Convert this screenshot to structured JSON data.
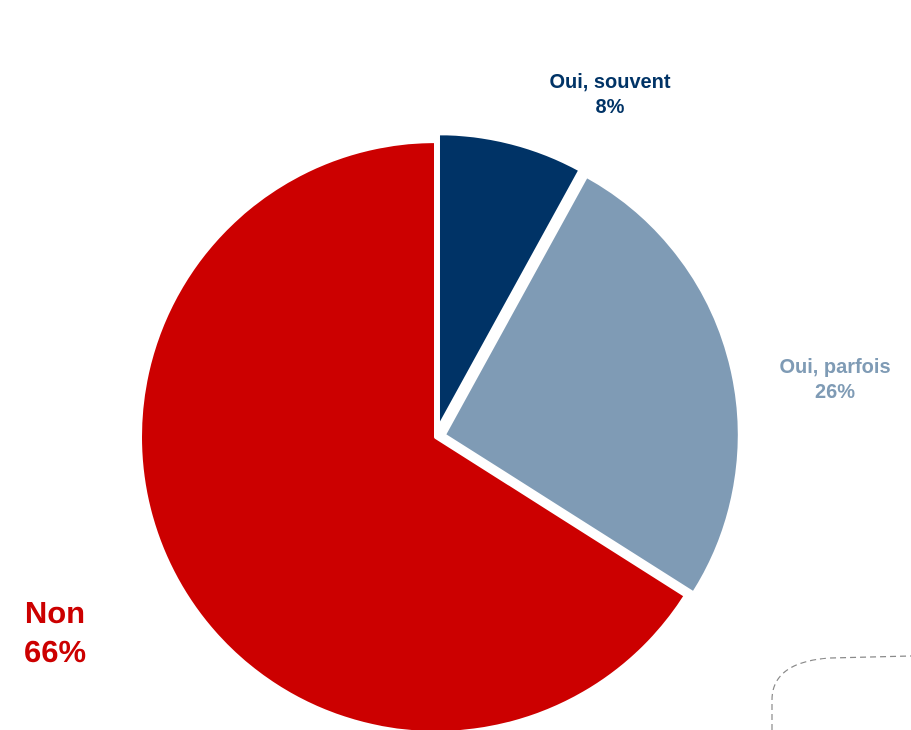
{
  "chart_data": {
    "type": "pie",
    "start_angle_deg": 0,
    "direction": "clockwise",
    "slices": [
      {
        "label": "Oui, souvent",
        "value": 8,
        "value_label": "8%",
        "color": "#003366"
      },
      {
        "label": "Oui, parfois",
        "value": 26,
        "value_label": "26%",
        "color": "#7F9BB5"
      },
      {
        "label": "Non",
        "value": 66,
        "value_label": "66%",
        "color": "#CC0000"
      }
    ]
  }
}
